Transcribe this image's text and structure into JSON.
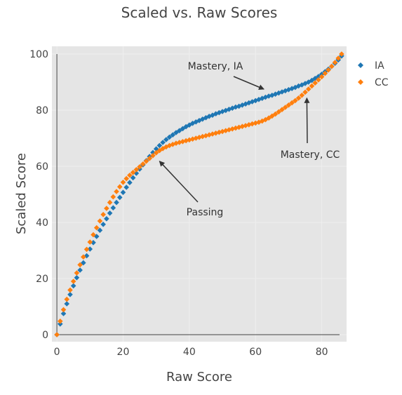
{
  "chart_data": {
    "type": "scatter",
    "title": "Scaled vs. Raw Scores",
    "xlabel": "Raw Score",
    "ylabel": "Scaled Score",
    "xlim": [
      -1.5,
      87.5
    ],
    "ylim": [
      0,
      100
    ],
    "xticks": [
      0,
      20,
      40,
      60,
      80
    ],
    "yticks": [
      0,
      20,
      40,
      60,
      80,
      100
    ],
    "grid": true,
    "legend": "top-right",
    "colors": {
      "plot_bg": "#e5e5e5",
      "grid": "#eeeeee",
      "axis": "#444444"
    },
    "series": [
      {
        "name": "IA",
        "color": "#1f77b4",
        "marker": "diamond",
        "x": [
          0,
          1,
          2,
          3,
          4,
          5,
          6,
          7,
          8,
          9,
          10,
          11,
          12,
          13,
          14,
          15,
          16,
          17,
          18,
          19,
          20,
          21,
          22,
          23,
          24,
          25,
          26,
          27,
          28,
          29,
          30,
          31,
          32,
          33,
          34,
          35,
          36,
          37,
          38,
          39,
          40,
          41,
          42,
          43,
          44,
          45,
          46,
          47,
          48,
          49,
          50,
          51,
          52,
          53,
          54,
          55,
          56,
          57,
          58,
          59,
          60,
          61,
          62,
          63,
          64,
          65,
          66,
          67,
          68,
          69,
          70,
          71,
          72,
          73,
          74,
          75,
          76,
          77,
          78,
          79,
          80,
          81,
          82,
          83,
          84,
          85,
          86
        ],
        "y": [
          0.0,
          3.8,
          7.5,
          11.0,
          14.3,
          17.4,
          20.3,
          23.0,
          25.6,
          28.1,
          30.5,
          32.8,
          35.0,
          37.2,
          39.3,
          41.3,
          43.3,
          45.2,
          47.1,
          48.9,
          50.7,
          52.5,
          54.2,
          55.9,
          57.5,
          59.0,
          60.5,
          62.0,
          63.5,
          64.9,
          66.2,
          67.4,
          68.5,
          69.5,
          70.4,
          71.2,
          72.0,
          72.7,
          73.4,
          74.1,
          74.7,
          75.3,
          75.8,
          76.3,
          76.8,
          77.3,
          77.8,
          78.2,
          78.7,
          79.1,
          79.5,
          79.9,
          80.3,
          80.7,
          81.1,
          81.4,
          81.8,
          82.2,
          82.6,
          83.0,
          83.4,
          83.8,
          84.2,
          84.6,
          85.0,
          85.3,
          85.7,
          86.1,
          86.5,
          86.9,
          87.3,
          87.7,
          88.1,
          88.6,
          89.0,
          89.5,
          90.0,
          90.6,
          91.3,
          92.0,
          92.8,
          93.7,
          94.6,
          95.6,
          96.7,
          97.9,
          99.3
        ]
      },
      {
        "name": "CC",
        "color": "#ff7f0e",
        "marker": "diamond",
        "x": [
          0,
          1,
          2,
          3,
          4,
          5,
          6,
          7,
          8,
          9,
          10,
          11,
          12,
          13,
          14,
          15,
          16,
          17,
          18,
          19,
          20,
          21,
          22,
          23,
          24,
          25,
          26,
          27,
          28,
          29,
          30,
          31,
          32,
          33,
          34,
          35,
          36,
          37,
          38,
          39,
          40,
          41,
          42,
          43,
          44,
          45,
          46,
          47,
          48,
          49,
          50,
          51,
          52,
          53,
          54,
          55,
          56,
          57,
          58,
          59,
          60,
          61,
          62,
          63,
          64,
          65,
          66,
          67,
          68,
          69,
          70,
          71,
          72,
          73,
          74,
          75,
          76,
          77,
          78,
          79,
          80,
          81,
          82,
          83,
          84,
          85,
          86
        ],
        "y": [
          0.0,
          4.8,
          8.9,
          12.6,
          15.9,
          19.0,
          22.0,
          24.9,
          27.7,
          30.4,
          33.0,
          35.6,
          38.1,
          40.5,
          42.8,
          45.0,
          47.1,
          49.1,
          51.0,
          52.7,
          54.3,
          55.6,
          56.8,
          57.8,
          58.8,
          59.8,
          60.8,
          61.8,
          62.8,
          63.8,
          64.8,
          65.6,
          66.3,
          66.9,
          67.4,
          67.8,
          68.2,
          68.5,
          68.8,
          69.1,
          69.4,
          69.7,
          70.0,
          70.3,
          70.6,
          70.9,
          71.2,
          71.5,
          71.8,
          72.1,
          72.4,
          72.7,
          73.0,
          73.3,
          73.6,
          73.9,
          74.2,
          74.5,
          74.8,
          75.1,
          75.4,
          75.7,
          76.1,
          76.6,
          77.2,
          77.9,
          78.6,
          79.4,
          80.2,
          81.0,
          81.8,
          82.6,
          83.4,
          84.3,
          85.3,
          86.4,
          87.5,
          88.6,
          89.7,
          90.8,
          91.9,
          93.1,
          94.3,
          95.6,
          97.0,
          98.5,
          100.0
        ]
      }
    ],
    "annotations": [
      {
        "text": "Mastery, IA",
        "x": 62.5,
        "y": 87.5
      },
      {
        "text": "Mastery, CC",
        "x": 75.5,
        "y": 84.3
      },
      {
        "text": "Passing",
        "x": 31,
        "y": 61.8
      }
    ]
  }
}
